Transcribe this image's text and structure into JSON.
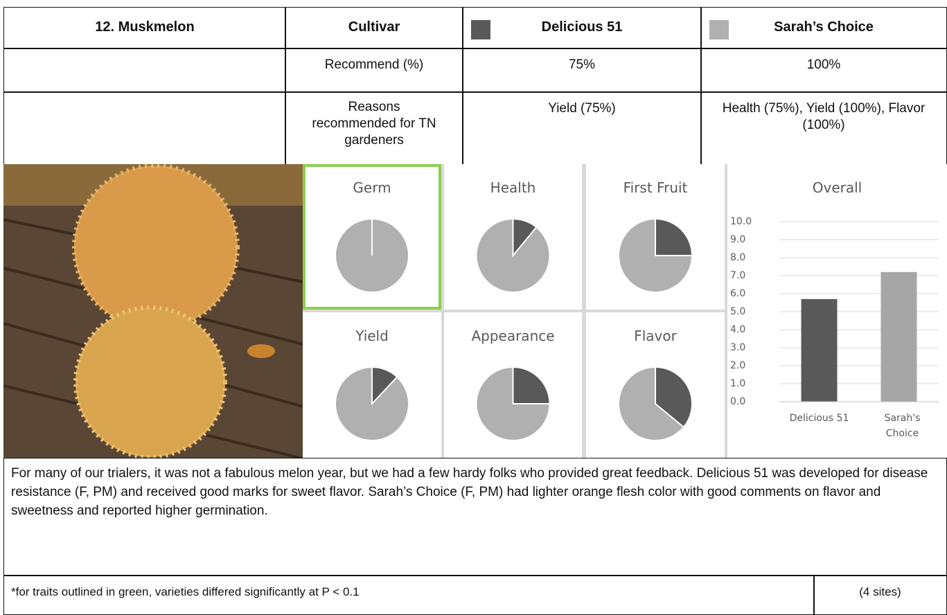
{
  "table": {
    "title": "12. Muskmelon",
    "cultivar_label": "Cultivar",
    "cultivars": [
      {
        "name": "Delicious 51",
        "color": "#595959"
      },
      {
        "name": "Sarah’s Choice",
        "color": "#b0b0b0"
      }
    ],
    "rows": [
      {
        "label": "Recommend (%)",
        "values": [
          "75%",
          "100%"
        ]
      },
      {
        "label": "Reasons recommended for TN gardeners",
        "values": [
          "Yield (75%)",
          "Health (75%), Yield (100%), Flavor (100%)"
        ]
      }
    ]
  },
  "pies": [
    {
      "type": "pie",
      "title": "Germ",
      "values": [
        0,
        100
      ],
      "significant": true
    },
    {
      "type": "pie",
      "title": "Health",
      "values": [
        11,
        89
      ],
      "significant": false
    },
    {
      "type": "pie",
      "title": "First Fruit",
      "values": [
        25,
        75
      ],
      "significant": false
    },
    {
      "type": "pie",
      "title": "Yield",
      "values": [
        12,
        88
      ],
      "significant": false
    },
    {
      "type": "pie",
      "title": "Appearance",
      "values": [
        25,
        75
      ],
      "significant": false
    },
    {
      "type": "pie",
      "title": "Flavor",
      "values": [
        36,
        64
      ],
      "significant": false
    }
  ],
  "chart_data": {
    "type": "bar",
    "title": "Overall",
    "categories": [
      "Delicious 51",
      "Sarah's Choice"
    ],
    "values": [
      5.7,
      7.2
    ],
    "colors": [
      "#595959",
      "#a6a6a6"
    ],
    "ylim": [
      0,
      10
    ],
    "yticks": [
      {
        "value": 0,
        "label": "0.0"
      },
      {
        "value": 1,
        "label": "1.0"
      },
      {
        "value": 2,
        "label": "2.0"
      },
      {
        "value": 3,
        "label": "3.0"
      },
      {
        "value": 4,
        "label": "4.0"
      },
      {
        "value": 5,
        "label": "5.0"
      },
      {
        "value": 6,
        "label": "6.0"
      },
      {
        "value": 7,
        "label": "7.0"
      },
      {
        "value": 8,
        "label": "8.0"
      },
      {
        "value": 9,
        "label": "9.0"
      },
      {
        "value": 10,
        "label": "10.0"
      }
    ],
    "grid": true
  },
  "description": "For many of our trialers, it was not a fabulous melon year, but we had a few hardy folks who provided great feedback. Delicious 51 was developed for disease resistance (F, PM) and received good marks for sweet flavor. Sarah’s Choice (F, PM) had lighter orange flesh color with good comments on flavor and sweetness and reported higher germination.",
  "footnote": "*for traits outlined in green, varieties differed significantly at P < 0.1",
  "sites": "(4 sites)"
}
